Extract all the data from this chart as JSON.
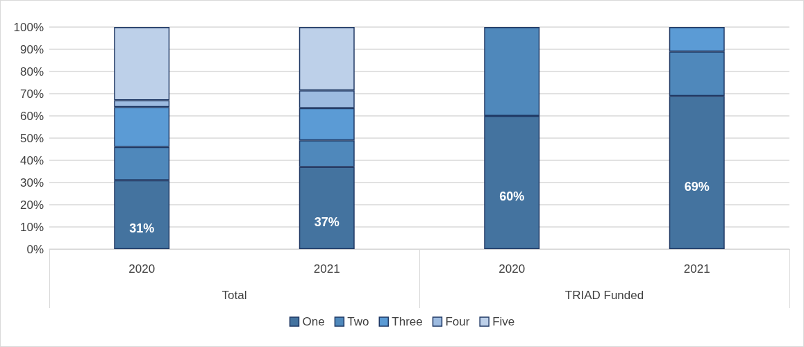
{
  "chart_data": {
    "type": "bar",
    "stacked": true,
    "categories": [
      "2020",
      "2021",
      "2020",
      "2021"
    ],
    "series": [
      {
        "name": "One",
        "color": "#44739f",
        "values": [
          31,
          37,
          60,
          69
        ],
        "value_labels": [
          "31%",
          "37%",
          "60%",
          "69%"
        ]
      },
      {
        "name": "Two",
        "color": "#4f88bb",
        "values": [
          15,
          12,
          40,
          20
        ]
      },
      {
        "name": "Three",
        "color": "#5b9bd5",
        "values": [
          18,
          14.5,
          null,
          11
        ]
      },
      {
        "name": "Four",
        "color": "#9dbbe0",
        "values": [
          3,
          8,
          null,
          null
        ]
      },
      {
        "name": "Five",
        "color": "#bdd0e9",
        "values": [
          33,
          28.5,
          null,
          null
        ]
      }
    ],
    "annotations": [
      "Total",
      "TRIAD Funded"
    ],
    "ylim": [
      0,
      100
    ],
    "yticks": [
      {
        "value": 0,
        "label": "0%"
      },
      {
        "value": 10,
        "label": "10%"
      },
      {
        "value": 20,
        "label": "20%"
      },
      {
        "value": 30,
        "label": "30%"
      },
      {
        "value": 40,
        "label": "40%"
      },
      {
        "value": 50,
        "label": "50%"
      },
      {
        "value": 60,
        "label": "60%"
      },
      {
        "value": 70,
        "label": "70%"
      },
      {
        "value": 80,
        "label": "80%"
      },
      {
        "value": 90,
        "label": "90%"
      },
      {
        "value": 100,
        "label": "100%"
      }
    ],
    "grid": "y",
    "legend": "bottom"
  }
}
